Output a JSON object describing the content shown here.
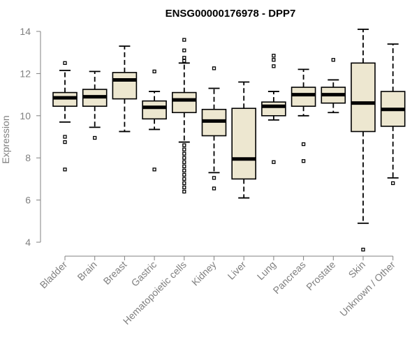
{
  "chart_data": {
    "type": "boxplot",
    "title": "ENSG00000176978 - DPP7",
    "xlabel": "",
    "ylabel": "Expression",
    "ylim": [
      3.5,
      14.3
    ],
    "yticks": [
      4,
      6,
      8,
      10,
      12,
      14
    ],
    "box_fill": "#ede7d0",
    "categories": [
      "Bladder",
      "Brain",
      "Breast",
      "Gastric",
      "Hematopoietic cells",
      "Kidney",
      "Liver",
      "Lung",
      "Pancreas",
      "Prostate",
      "Skin",
      "Unknown / Other"
    ],
    "boxes": [
      {
        "name": "Bladder",
        "wlow": 9.7,
        "q1": 10.45,
        "median": 10.85,
        "q3": 11.1,
        "whigh": 12.15,
        "outliers": [
          12.5,
          9.0,
          8.75,
          7.45
        ]
      },
      {
        "name": "Brain",
        "wlow": 9.45,
        "q1": 10.45,
        "median": 10.9,
        "q3": 11.25,
        "whigh": 12.1,
        "outliers": [
          8.95
        ]
      },
      {
        "name": "Breast",
        "wlow": 9.25,
        "q1": 10.8,
        "median": 11.7,
        "q3": 12.05,
        "whigh": 13.3,
        "outliers": []
      },
      {
        "name": "Gastric",
        "wlow": 9.35,
        "q1": 9.85,
        "median": 10.4,
        "q3": 10.7,
        "whigh": 11.15,
        "outliers": [
          12.1,
          7.45
        ]
      },
      {
        "name": "Hematopoietic cells",
        "wlow": 8.75,
        "q1": 10.15,
        "median": 10.75,
        "q3": 11.1,
        "whigh": 12.5,
        "outliers": [
          13.6,
          13.1,
          12.75,
          12.6,
          8.6,
          8.4,
          8.2,
          8.0,
          7.8,
          7.6,
          7.4,
          7.2,
          7.0,
          6.8,
          6.6,
          6.4
        ]
      },
      {
        "name": "Kidney",
        "wlow": 7.3,
        "q1": 9.05,
        "median": 9.75,
        "q3": 10.3,
        "whigh": 11.3,
        "outliers": [
          12.25,
          7.05,
          6.55
        ]
      },
      {
        "name": "Liver",
        "wlow": 6.1,
        "q1": 7.0,
        "median": 7.95,
        "q3": 10.35,
        "whigh": 11.6,
        "outliers": []
      },
      {
        "name": "Lung",
        "wlow": 9.8,
        "q1": 10.0,
        "median": 10.45,
        "q3": 10.65,
        "whigh": 11.15,
        "outliers": [
          12.85,
          12.65,
          12.35,
          7.8
        ]
      },
      {
        "name": "Pancreas",
        "wlow": 10.0,
        "q1": 10.45,
        "median": 11.0,
        "q3": 11.35,
        "whigh": 12.2,
        "outliers": [
          8.65,
          7.85
        ]
      },
      {
        "name": "Prostate",
        "wlow": 10.15,
        "q1": 10.6,
        "median": 11.0,
        "q3": 11.35,
        "whigh": 11.7,
        "outliers": [
          12.65
        ]
      },
      {
        "name": "Skin",
        "wlow": 4.9,
        "q1": 9.25,
        "median": 10.6,
        "q3": 12.5,
        "whigh": 14.1,
        "outliers": [
          3.65
        ]
      },
      {
        "name": "Unknown / Other",
        "wlow": 7.05,
        "q1": 9.5,
        "median": 10.3,
        "q3": 11.15,
        "whigh": 13.4,
        "outliers": [
          6.8
        ]
      }
    ]
  }
}
